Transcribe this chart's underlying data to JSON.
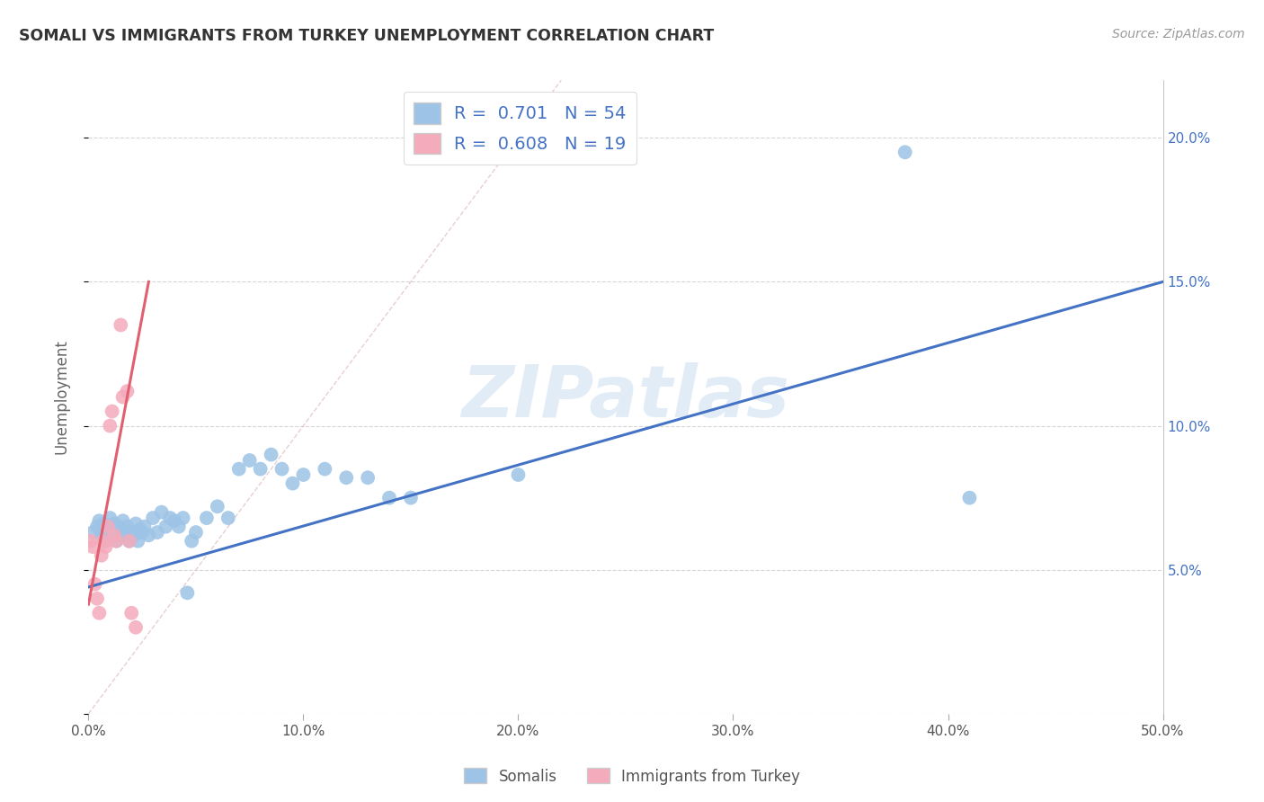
{
  "title": "SOMALI VS IMMIGRANTS FROM TURKEY UNEMPLOYMENT CORRELATION CHART",
  "source": "Source: ZipAtlas.com",
  "ylabel": "Unemployment",
  "xlim": [
    0.0,
    0.5
  ],
  "ylim": [
    0.0,
    0.22
  ],
  "xticks": [
    0.0,
    0.1,
    0.2,
    0.3,
    0.4,
    0.5
  ],
  "xtick_labels": [
    "0.0%",
    "10.0%",
    "20.0%",
    "30.0%",
    "40.0%",
    "50.0%"
  ],
  "yticks": [
    0.0,
    0.05,
    0.1,
    0.15,
    0.2
  ],
  "ytick_labels_right": [
    "",
    "5.0%",
    "10.0%",
    "15.0%",
    "20.0%"
  ],
  "watermark": "ZIPatlas",
  "legend_label1": "Somalis",
  "legend_label2": "Immigrants from Turkey",
  "color_blue": "#9DC3E6",
  "color_pink": "#F4ABBB",
  "color_blue_line": "#4472C4",
  "color_pink_line": "#E06070",
  "blue_R": "0.701",
  "blue_N": "54",
  "pink_R": "0.608",
  "pink_N": "19",
  "blue_x": [
    0.002,
    0.004,
    0.005,
    0.006,
    0.007,
    0.008,
    0.009,
    0.01,
    0.011,
    0.012,
    0.013,
    0.014,
    0.015,
    0.016,
    0.017,
    0.018,
    0.019,
    0.02,
    0.021,
    0.022,
    0.023,
    0.024,
    0.025,
    0.026,
    0.028,
    0.03,
    0.032,
    0.034,
    0.036,
    0.038,
    0.04,
    0.042,
    0.044,
    0.046,
    0.048,
    0.05,
    0.055,
    0.06,
    0.065,
    0.07,
    0.075,
    0.08,
    0.085,
    0.09,
    0.095,
    0.1,
    0.11,
    0.12,
    0.13,
    0.14,
    0.15,
    0.2,
    0.38,
    0.41
  ],
  "blue_y": [
    0.063,
    0.065,
    0.067,
    0.062,
    0.066,
    0.06,
    0.064,
    0.068,
    0.063,
    0.066,
    0.06,
    0.065,
    0.062,
    0.067,
    0.063,
    0.065,
    0.06,
    0.063,
    0.062,
    0.066,
    0.06,
    0.064,
    0.063,
    0.065,
    0.062,
    0.068,
    0.063,
    0.07,
    0.065,
    0.068,
    0.067,
    0.065,
    0.068,
    0.042,
    0.06,
    0.063,
    0.068,
    0.072,
    0.068,
    0.085,
    0.088,
    0.085,
    0.09,
    0.085,
    0.08,
    0.083,
    0.085,
    0.082,
    0.082,
    0.075,
    0.075,
    0.083,
    0.195,
    0.075
  ],
  "pink_x": [
    0.001,
    0.002,
    0.003,
    0.004,
    0.005,
    0.006,
    0.007,
    0.008,
    0.009,
    0.01,
    0.011,
    0.012,
    0.013,
    0.015,
    0.016,
    0.018,
    0.019,
    0.02,
    0.022
  ],
  "pink_y": [
    0.06,
    0.058,
    0.045,
    0.04,
    0.035,
    0.055,
    0.06,
    0.058,
    0.065,
    0.1,
    0.105,
    0.062,
    0.06,
    0.135,
    0.11,
    0.112,
    0.06,
    0.035,
    0.03
  ],
  "blue_line_x": [
    0.0,
    0.5
  ],
  "blue_line_y": [
    0.044,
    0.15
  ],
  "pink_line_x": [
    0.0,
    0.028
  ],
  "pink_line_y": [
    0.038,
    0.15
  ],
  "diag_line_x": [
    0.0,
    0.22
  ],
  "diag_line_y": [
    0.0,
    0.22
  ]
}
